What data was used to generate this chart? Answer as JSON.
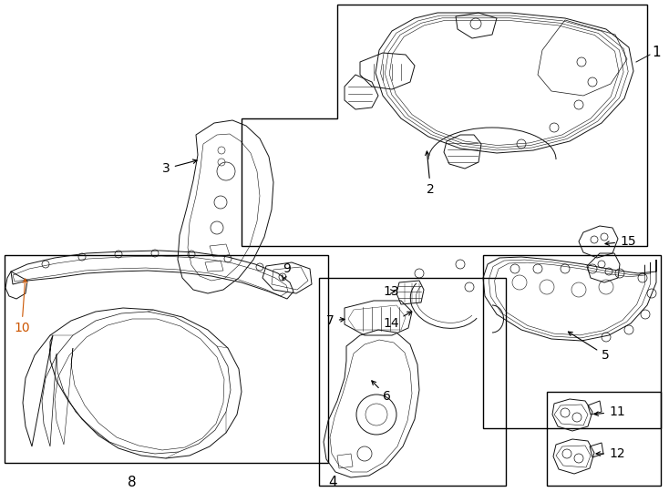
{
  "bg_color": "#ffffff",
  "line_color": "#000000",
  "part_color": "#111111",
  "figure_width": 7.34,
  "figure_height": 5.4,
  "dpi": 100,
  "orange": "#cc5500"
}
